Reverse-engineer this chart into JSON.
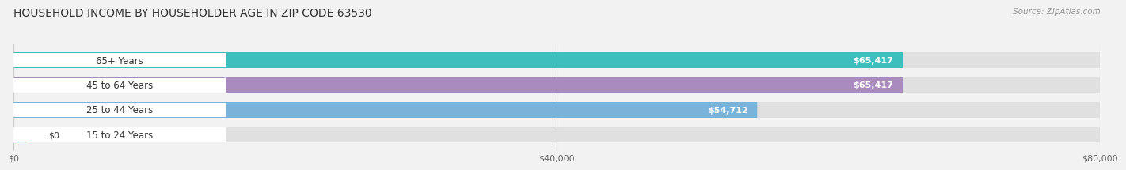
{
  "title": "HOUSEHOLD INCOME BY HOUSEHOLDER AGE IN ZIP CODE 63530",
  "source": "Source: ZipAtlas.com",
  "categories": [
    "15 to 24 Years",
    "25 to 44 Years",
    "45 to 64 Years",
    "65+ Years"
  ],
  "values": [
    0,
    54712,
    65417,
    65417
  ],
  "value_labels": [
    "$0",
    "$54,712",
    "$65,417",
    "$65,417"
  ],
  "bar_colors": [
    "#e8888c",
    "#7ab3d9",
    "#a98bbf",
    "#3dbfbe"
  ],
  "xlim": [
    0,
    80000
  ],
  "xtick_values": [
    0,
    40000,
    80000
  ],
  "xtick_labels": [
    "$0",
    "$40,000",
    "$80,000"
  ],
  "background_color": "#f2f2f2",
  "bar_bg_color": "#e0e0e0",
  "white_label_bg": "#ffffff",
  "title_fontsize": 10,
  "source_fontsize": 7.5,
  "label_fontsize": 8.5,
  "value_fontsize": 8,
  "tick_fontsize": 8
}
